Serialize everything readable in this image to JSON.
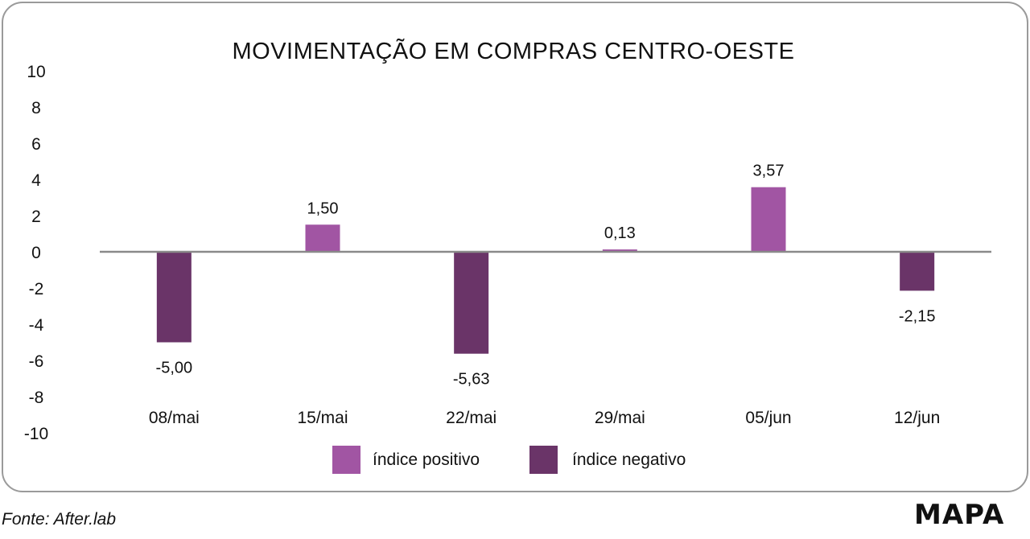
{
  "chart_data": {
    "type": "bar",
    "title": "MOVIMENTAÇÃO EM COMPRAS CENTRO-OESTE",
    "categories": [
      "08/mai",
      "15/mai",
      "22/mai",
      "29/mai",
      "05/jun",
      "12/jun"
    ],
    "values": [
      -5.0,
      1.5,
      -5.63,
      0.13,
      3.57,
      -2.15
    ],
    "value_labels": [
      "-5,00",
      "1,50",
      "-5,63",
      "0,13",
      "3,57",
      "-2,15"
    ],
    "ylim": [
      -10,
      10
    ],
    "yticks": [
      10,
      8,
      6,
      4,
      2,
      0,
      -2,
      -4,
      -6,
      -8,
      -10
    ],
    "grid": false,
    "legend": {
      "placement": "bottom",
      "entries": [
        {
          "label": "índice positivo",
          "color": "#a155a3"
        },
        {
          "label": "índice negativo",
          "color": "#6a3468"
        }
      ]
    }
  },
  "source": "Fonte: After.lab",
  "logo": "MAPA"
}
